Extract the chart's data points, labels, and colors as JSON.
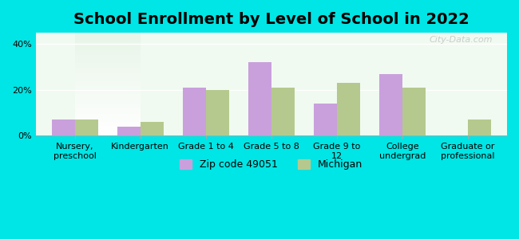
{
  "title": "School Enrollment by Level of School in 2022",
  "categories": [
    "Nursery,\npreschool",
    "Kindergarten",
    "Grade 1 to 4",
    "Grade 5 to 8",
    "Grade 9 to\n12",
    "College\nundergrad",
    "Graduate or\nprofessional"
  ],
  "zip_values": [
    7,
    4,
    21,
    32,
    14,
    27,
    0
  ],
  "mi_values": [
    7,
    6,
    20,
    21,
    23,
    21,
    7
  ],
  "zip_color": "#c9a0dc",
  "mi_color": "#b5c98e",
  "background_outer": "#00e5e5",
  "background_inner_top": "#f0faf0",
  "background_inner_bottom": "#ffffff",
  "ylabel_ticks": [
    "0%",
    "20%",
    "40%"
  ],
  "yticks": [
    0,
    20,
    40
  ],
  "ylim": [
    0,
    45
  ],
  "zip_label": "Zip code 49051",
  "mi_label": "Michigan",
  "watermark": "City-Data.com",
  "title_fontsize": 14,
  "tick_fontsize": 8,
  "legend_fontsize": 9,
  "bar_width": 0.35
}
